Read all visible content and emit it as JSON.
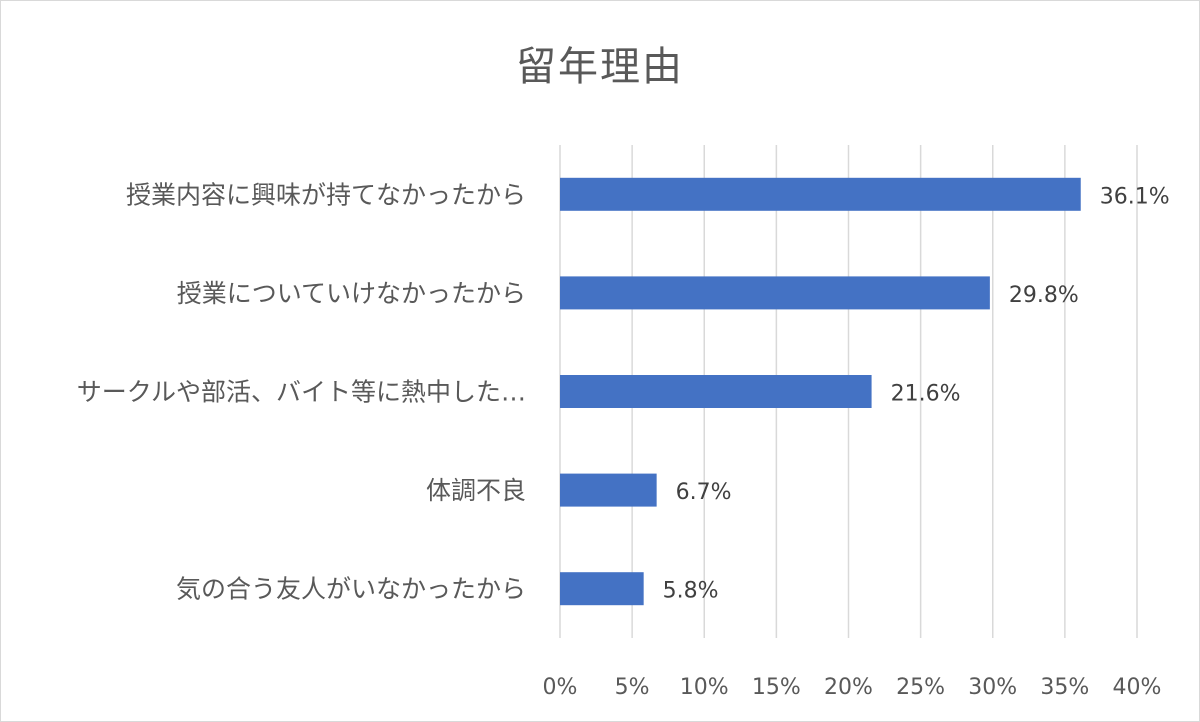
{
  "chart_data": {
    "type": "bar",
    "orientation": "horizontal",
    "title": "留年理由",
    "categories": [
      "授業内容に興味が持てなかったから",
      "授業についていけなかったから",
      "サークルや部活、バイト等に熱中した…",
      "体調不良",
      "気の合う友人がいなかったから"
    ],
    "values": [
      36.1,
      29.8,
      21.6,
      6.7,
      5.8
    ],
    "data_labels": [
      "36.1%",
      "29.8%",
      "21.6%",
      "6.7%",
      "5.8%"
    ],
    "xlim": [
      0,
      40
    ],
    "xticks": [
      0,
      5,
      10,
      15,
      20,
      25,
      30,
      35,
      40
    ],
    "xtick_labels": [
      "0%",
      "5%",
      "10%",
      "15%",
      "20%",
      "25%",
      "30%",
      "35%",
      "40%"
    ],
    "xlabel": "",
    "ylabel": "",
    "grid": "vertical",
    "bar_color": "#4472c4",
    "grid_color": "#d9d9d9"
  }
}
